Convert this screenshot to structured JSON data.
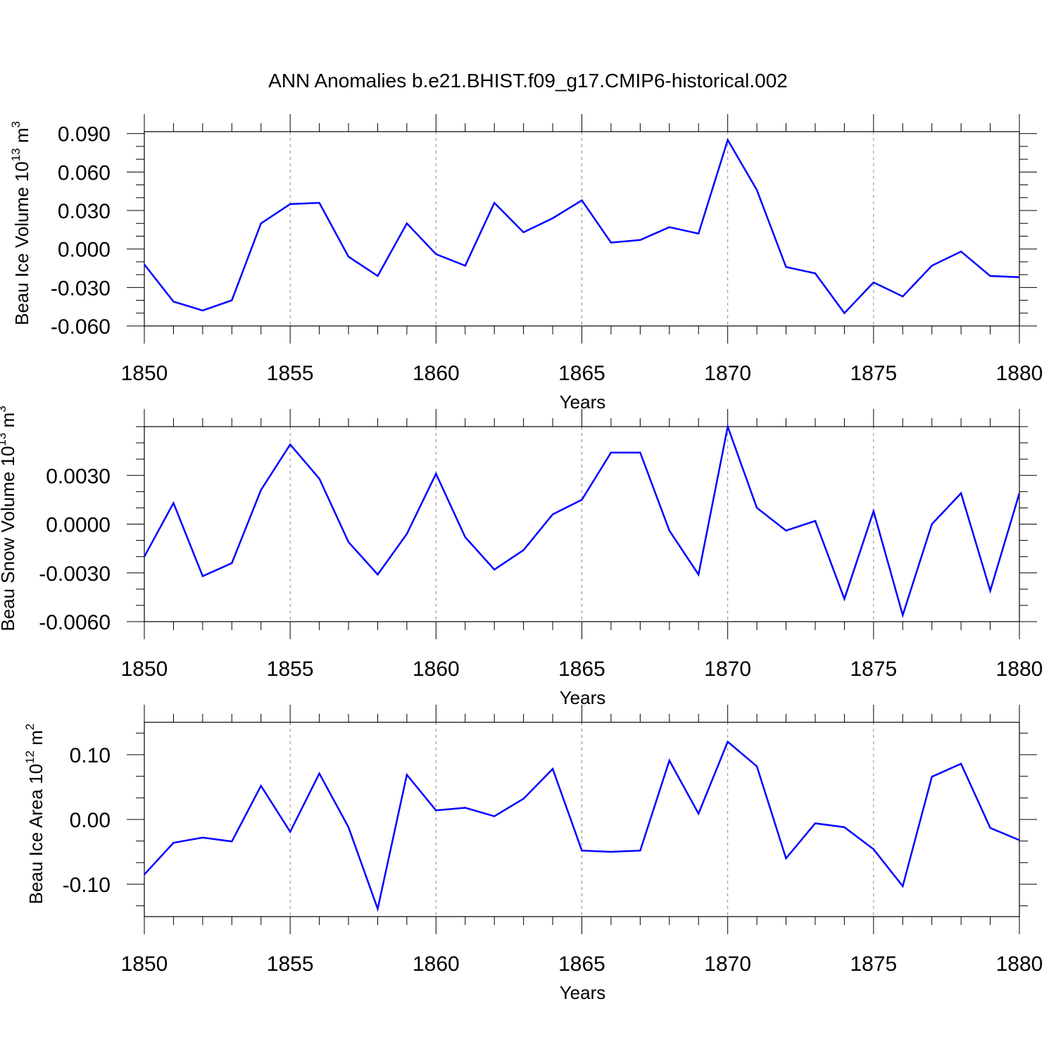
{
  "title": "ANN Anomalies b.e21.BHIST.f09_g17.CMIP6-historical.002",
  "colors": {
    "line": "#0000ff",
    "axis": "#000000",
    "grid": "#888888"
  },
  "chart_data": [
    {
      "type": "line",
      "ylabel": "Beau Ice Volume",
      "ylabel_unit_prefix": "10",
      "ylabel_unit_exp": "13",
      "ylabel_unit_base": "m",
      "ylabel_unit_base_exp": "3",
      "xlabel": "Years",
      "xlim": [
        1850,
        1880
      ],
      "ylim": [
        -0.06,
        0.0915
      ],
      "grid": "vertical dashed at major x ticks",
      "x_ticks": [
        1850,
        1855,
        1860,
        1865,
        1870,
        1875,
        1880
      ],
      "x_tick_labels": [
        "1850",
        "1855",
        "1860",
        "1865",
        "1870",
        "1875",
        "1880"
      ],
      "y_ticks": [
        -0.06,
        -0.03,
        0.0,
        0.03,
        0.06,
        0.09
      ],
      "y_tick_labels": [
        "-0.060",
        "-0.030",
        "0.000",
        "0.030",
        "0.060",
        "0.090"
      ],
      "x": [
        1850,
        1851,
        1852,
        1853,
        1854,
        1855,
        1856,
        1857,
        1858,
        1859,
        1860,
        1861,
        1862,
        1863,
        1864,
        1865,
        1866,
        1867,
        1868,
        1869,
        1870,
        1871,
        1872,
        1873,
        1874,
        1875,
        1876,
        1877,
        1878,
        1879,
        1880
      ],
      "values": [
        -0.012,
        -0.041,
        -0.048,
        -0.04,
        0.02,
        0.035,
        0.036,
        -0.006,
        -0.021,
        0.02,
        -0.004,
        -0.013,
        0.036,
        0.013,
        0.024,
        0.038,
        0.005,
        0.007,
        0.017,
        0.012,
        0.085,
        0.046,
        -0.014,
        -0.019,
        -0.05,
        -0.026,
        -0.037,
        -0.013,
        -0.002,
        -0.021,
        -0.022
      ]
    },
    {
      "type": "line",
      "ylabel": "Beau Snow Volume",
      "ylabel_unit_prefix": "10",
      "ylabel_unit_exp": "13",
      "ylabel_unit_base": "m",
      "ylabel_unit_base_exp": "3",
      "xlabel": "Years",
      "xlim": [
        1850,
        1880
      ],
      "ylim": [
        -0.006,
        0.006
      ],
      "grid": "vertical dashed at major x ticks",
      "x_ticks": [
        1850,
        1855,
        1860,
        1865,
        1870,
        1875,
        1880
      ],
      "x_tick_labels": [
        "1850",
        "1855",
        "1860",
        "1865",
        "1870",
        "1875",
        "1880"
      ],
      "y_ticks": [
        -0.006,
        -0.003,
        0.0,
        0.003
      ],
      "y_tick_labels": [
        "-0.0060",
        "-0.0030",
        "0.0000",
        "0.0030"
      ],
      "x": [
        1850,
        1851,
        1852,
        1853,
        1854,
        1855,
        1856,
        1857,
        1858,
        1859,
        1860,
        1861,
        1862,
        1863,
        1864,
        1865,
        1866,
        1867,
        1868,
        1869,
        1870,
        1871,
        1872,
        1873,
        1874,
        1875,
        1876,
        1877,
        1878,
        1879,
        1880
      ],
      "values": [
        -0.002,
        0.0013,
        -0.0032,
        -0.0024,
        0.0021,
        0.0049,
        0.0028,
        -0.0011,
        -0.0031,
        -0.0006,
        0.0031,
        -0.0008,
        -0.0028,
        -0.0016,
        0.0006,
        0.0015,
        0.0044,
        0.0044,
        -0.0004,
        -0.0031,
        0.006,
        0.001,
        -0.0004,
        0.0002,
        -0.0046,
        0.0008,
        -0.0056,
        0.0,
        0.0019,
        -0.0041,
        0.0019
      ]
    },
    {
      "type": "line",
      "ylabel": "Beau Ice Area",
      "ylabel_unit_prefix": "10",
      "ylabel_unit_exp": "12",
      "ylabel_unit_base": "m",
      "ylabel_unit_base_exp": "2",
      "xlabel": "Years",
      "xlim": [
        1850,
        1880
      ],
      "ylim": [
        -0.15,
        0.15
      ],
      "grid": "vertical dashed at major x ticks",
      "x_ticks": [
        1850,
        1855,
        1860,
        1865,
        1870,
        1875,
        1880
      ],
      "x_tick_labels": [
        "1850",
        "1855",
        "1860",
        "1865",
        "1870",
        "1875",
        "1880"
      ],
      "y_ticks": [
        -0.1,
        0.0,
        0.1
      ],
      "y_tick_labels": [
        "-0.10",
        "0.00",
        "0.10"
      ],
      "x": [
        1850,
        1851,
        1852,
        1853,
        1854,
        1855,
        1856,
        1857,
        1858,
        1859,
        1860,
        1861,
        1862,
        1863,
        1864,
        1865,
        1866,
        1867,
        1868,
        1869,
        1870,
        1871,
        1872,
        1873,
        1874,
        1875,
        1876,
        1877,
        1878,
        1879,
        1880
      ],
      "values": [
        -0.085,
        -0.036,
        -0.028,
        -0.034,
        0.052,
        -0.019,
        0.071,
        -0.012,
        -0.138,
        0.069,
        0.014,
        0.018,
        0.005,
        0.032,
        0.078,
        -0.048,
        -0.05,
        -0.048,
        0.091,
        0.009,
        0.12,
        0.082,
        -0.06,
        -0.006,
        -0.012,
        -0.046,
        -0.103,
        0.066,
        0.086,
        -0.013,
        -0.032
      ]
    }
  ]
}
